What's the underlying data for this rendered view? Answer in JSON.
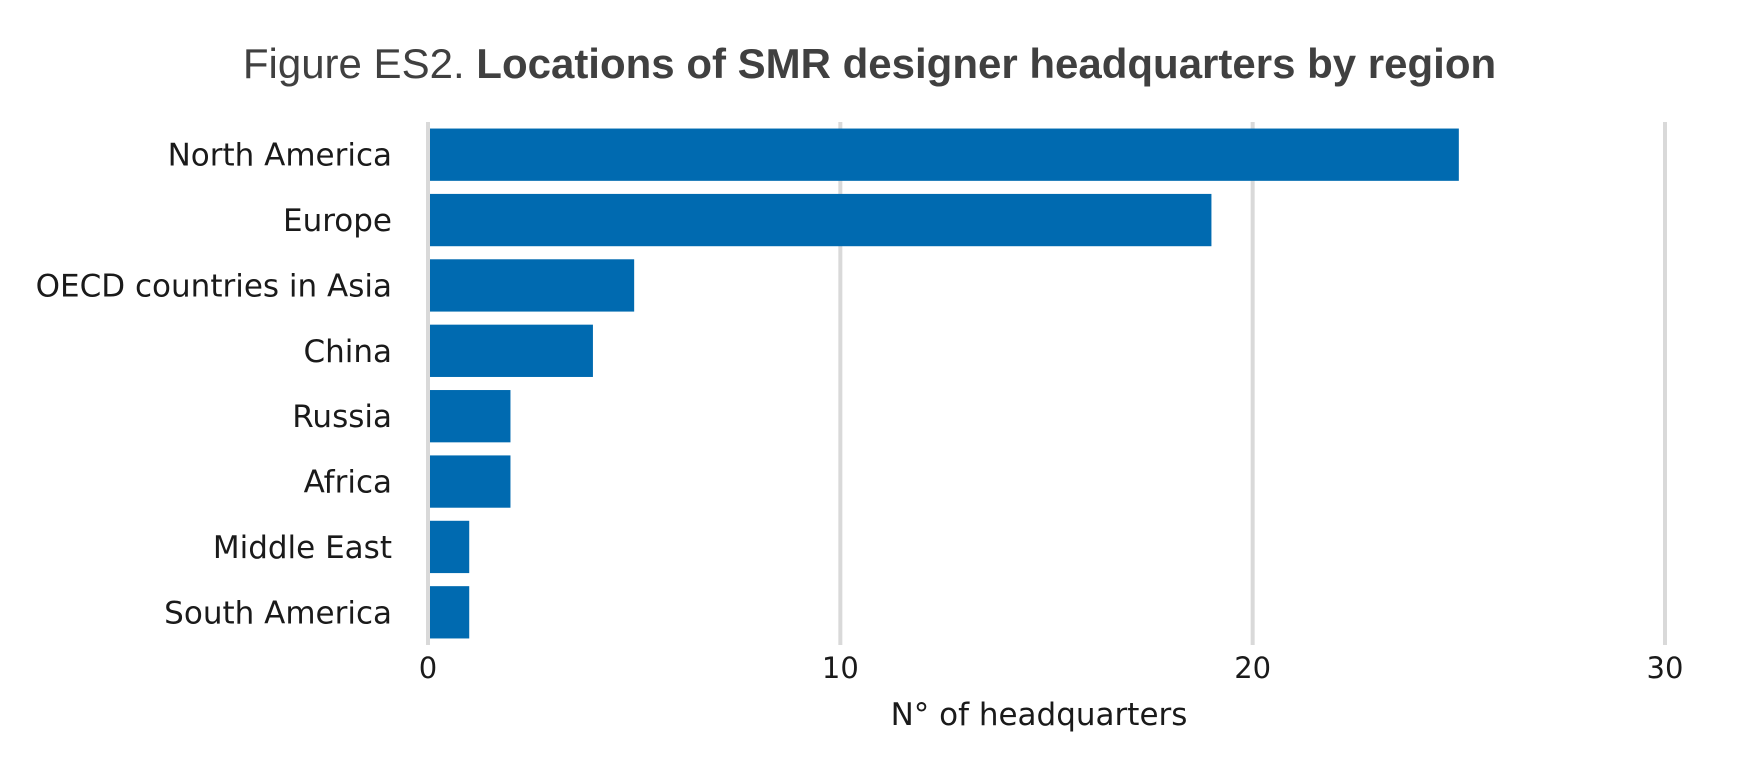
{
  "title_prefix": "Figure ES2.",
  "title_main": "Locations of SMR designer headquarters by region",
  "chart_data": {
    "type": "bar",
    "orientation": "horizontal",
    "categories": [
      "North America",
      "Europe",
      "OECD countries in Asia",
      "China",
      "Russia",
      "Africa",
      "Middle East",
      "South America"
    ],
    "values": [
      25,
      19,
      5,
      4,
      2,
      2,
      1,
      1
    ],
    "xlabel": "N° of headquarters",
    "ylabel": "",
    "xlim": [
      0,
      30
    ],
    "xticks": [
      "0",
      "10",
      "20",
      "30"
    ],
    "grid": "vertical",
    "bar_color": "#006ab0",
    "grid_color": "#d9d9d9"
  }
}
